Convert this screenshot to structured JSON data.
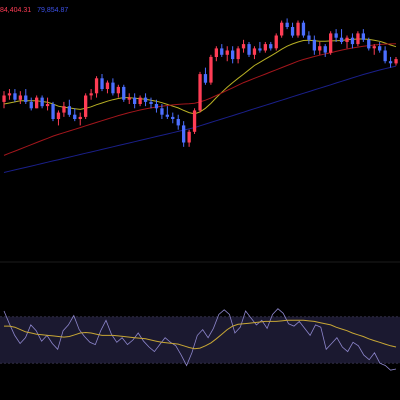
{
  "header": {
    "ma_values": [
      {
        "label": "84,404.31",
        "color": "#ff3d55"
      },
      {
        "label": "79,854.87",
        "color": "#3c50e6"
      }
    ]
  },
  "colors": {
    "background": "#000000",
    "bull": "#ff3d55",
    "bear": "#4c6fff",
    "ma_short": "#b8b024",
    "ma_mid": "#a3161c",
    "ma_long": "#1a1f8a",
    "rsi_line": "#8d86cc",
    "rsi_signal": "#c8a735",
    "rsi_band": "#1b1930",
    "rsi_band_edge": "#4a4468"
  },
  "chart_data": [
    {
      "type": "candlestick",
      "title": "",
      "price_range": [
        0,
        100
      ],
      "candles": [
        {
          "o": 58,
          "h": 63,
          "l": 55,
          "c": 61
        },
        {
          "o": 61,
          "h": 64,
          "l": 59,
          "c": 62
        },
        {
          "o": 62,
          "h": 64,
          "l": 58,
          "c": 59
        },
        {
          "o": 59,
          "h": 63,
          "l": 57,
          "c": 61
        },
        {
          "o": 61,
          "h": 64,
          "l": 57,
          "c": 58
        },
        {
          "o": 58,
          "h": 60,
          "l": 54,
          "c": 55
        },
        {
          "o": 55,
          "h": 61,
          "l": 55,
          "c": 60
        },
        {
          "o": 60,
          "h": 61,
          "l": 55,
          "c": 56
        },
        {
          "o": 56,
          "h": 60,
          "l": 54,
          "c": 57
        },
        {
          "o": 57,
          "h": 58,
          "l": 49,
          "c": 50
        },
        {
          "o": 50,
          "h": 54,
          "l": 47,
          "c": 53
        },
        {
          "o": 53,
          "h": 58,
          "l": 51,
          "c": 56
        },
        {
          "o": 56,
          "h": 59,
          "l": 51,
          "c": 52
        },
        {
          "o": 52,
          "h": 55,
          "l": 49,
          "c": 50
        },
        {
          "o": 50,
          "h": 53,
          "l": 47,
          "c": 51
        },
        {
          "o": 51,
          "h": 62,
          "l": 50,
          "c": 61
        },
        {
          "o": 61,
          "h": 64,
          "l": 59,
          "c": 62
        },
        {
          "o": 62,
          "h": 70,
          "l": 60,
          "c": 69
        },
        {
          "o": 69,
          "h": 71,
          "l": 63,
          "c": 64
        },
        {
          "o": 64,
          "h": 68,
          "l": 62,
          "c": 67
        },
        {
          "o": 67,
          "h": 69,
          "l": 61,
          "c": 62
        },
        {
          "o": 62,
          "h": 66,
          "l": 60,
          "c": 65
        },
        {
          "o": 65,
          "h": 66,
          "l": 58,
          "c": 59
        },
        {
          "o": 59,
          "h": 62,
          "l": 57,
          "c": 60
        },
        {
          "o": 60,
          "h": 62,
          "l": 55,
          "c": 57
        },
        {
          "o": 57,
          "h": 61,
          "l": 56,
          "c": 60
        },
        {
          "o": 60,
          "h": 62,
          "l": 56,
          "c": 58
        },
        {
          "o": 58,
          "h": 60,
          "l": 55,
          "c": 57
        },
        {
          "o": 57,
          "h": 59,
          "l": 53,
          "c": 55
        },
        {
          "o": 55,
          "h": 57,
          "l": 50,
          "c": 52
        },
        {
          "o": 52,
          "h": 56,
          "l": 50,
          "c": 51
        },
        {
          "o": 51,
          "h": 53,
          "l": 48,
          "c": 50
        },
        {
          "o": 50,
          "h": 52,
          "l": 45,
          "c": 47
        },
        {
          "o": 47,
          "h": 49,
          "l": 37,
          "c": 39
        },
        {
          "o": 39,
          "h": 45,
          "l": 37,
          "c": 44
        },
        {
          "o": 44,
          "h": 55,
          "l": 43,
          "c": 54
        },
        {
          "o": 54,
          "h": 72,
          "l": 53,
          "c": 71
        },
        {
          "o": 71,
          "h": 74,
          "l": 66,
          "c": 67
        },
        {
          "o": 67,
          "h": 80,
          "l": 66,
          "c": 79
        },
        {
          "o": 79,
          "h": 84,
          "l": 77,
          "c": 83
        },
        {
          "o": 83,
          "h": 85,
          "l": 79,
          "c": 80
        },
        {
          "o": 80,
          "h": 84,
          "l": 77,
          "c": 82
        },
        {
          "o": 82,
          "h": 84,
          "l": 76,
          "c": 78
        },
        {
          "o": 78,
          "h": 84,
          "l": 76,
          "c": 83
        },
        {
          "o": 83,
          "h": 87,
          "l": 81,
          "c": 85
        },
        {
          "o": 85,
          "h": 86,
          "l": 79,
          "c": 80
        },
        {
          "o": 80,
          "h": 84,
          "l": 78,
          "c": 83
        },
        {
          "o": 83,
          "h": 86,
          "l": 81,
          "c": 82
        },
        {
          "o": 82,
          "h": 86,
          "l": 81,
          "c": 85
        },
        {
          "o": 85,
          "h": 86,
          "l": 82,
          "c": 83
        },
        {
          "o": 83,
          "h": 90,
          "l": 82,
          "c": 89
        },
        {
          "o": 89,
          "h": 96,
          "l": 88,
          "c": 95
        },
        {
          "o": 95,
          "h": 97,
          "l": 92,
          "c": 93
        },
        {
          "o": 93,
          "h": 95,
          "l": 88,
          "c": 89
        },
        {
          "o": 89,
          "h": 96,
          "l": 88,
          "c": 95
        },
        {
          "o": 95,
          "h": 96,
          "l": 88,
          "c": 89
        },
        {
          "o": 89,
          "h": 91,
          "l": 85,
          "c": 87
        },
        {
          "o": 87,
          "h": 89,
          "l": 80,
          "c": 82
        },
        {
          "o": 82,
          "h": 86,
          "l": 80,
          "c": 84
        },
        {
          "o": 84,
          "h": 85,
          "l": 79,
          "c": 81
        },
        {
          "o": 81,
          "h": 91,
          "l": 80,
          "c": 90
        },
        {
          "o": 90,
          "h": 92,
          "l": 86,
          "c": 88
        },
        {
          "o": 88,
          "h": 92,
          "l": 85,
          "c": 86
        },
        {
          "o": 86,
          "h": 89,
          "l": 83,
          "c": 88
        },
        {
          "o": 88,
          "h": 90,
          "l": 83,
          "c": 85
        },
        {
          "o": 85,
          "h": 91,
          "l": 84,
          "c": 90
        },
        {
          "o": 90,
          "h": 92,
          "l": 86,
          "c": 87
        },
        {
          "o": 87,
          "h": 88,
          "l": 82,
          "c": 83
        },
        {
          "o": 83,
          "h": 85,
          "l": 80,
          "c": 84
        },
        {
          "o": 84,
          "h": 86,
          "l": 81,
          "c": 82
        },
        {
          "o": 82,
          "h": 84,
          "l": 76,
          "c": 77
        },
        {
          "o": 77,
          "h": 79,
          "l": 74,
          "c": 76
        },
        {
          "o": 76,
          "h": 79,
          "l": 75,
          "c": 78
        }
      ],
      "moving_averages": [
        {
          "color_key": "ma_short",
          "values": [
            57,
            57.5,
            58,
            58.5,
            58.5,
            58.5,
            58.5,
            58.2,
            57.8,
            57,
            56,
            55.5,
            55.2,
            54.8,
            54.5,
            55,
            55.7,
            56.7,
            57.5,
            58.3,
            59,
            59.6,
            60,
            60,
            59.7,
            59.5,
            59.2,
            58.8,
            58.3,
            57.6,
            56.8,
            56,
            55.2,
            54,
            53,
            52.4,
            53.3,
            55,
            57.3,
            60,
            62.5,
            64.8,
            67,
            69,
            71,
            73,
            75,
            76.5,
            78,
            79.5,
            81,
            82.6,
            84,
            85.1,
            86,
            86.7,
            86.8,
            86.6,
            86.3,
            86.3,
            86.5,
            86.6,
            86.7,
            87,
            87.2,
            87.4,
            87.4,
            87.2,
            86.8,
            86.3,
            85.5,
            84.6,
            83.8
          ]
        },
        {
          "color_key": "ma_mid",
          "values": [
            33,
            34,
            35,
            36,
            37,
            38,
            39,
            40,
            41,
            42,
            42.8,
            43.6,
            44.4,
            45.2,
            46,
            46.8,
            47.6,
            48.4,
            49.2,
            50,
            50.8,
            51.6,
            52.3,
            53,
            53.6,
            54.2,
            54.7,
            55.2,
            55.6,
            56,
            56.3,
            56.6,
            56.8,
            57,
            57.1,
            57.4,
            58,
            58.8,
            59.8,
            61,
            62.2,
            63.4,
            64.6,
            65.8,
            67,
            68,
            69,
            70,
            71,
            72,
            73,
            74,
            75,
            76,
            77,
            77.8,
            78.5,
            79.2,
            79.8,
            80.4,
            81,
            81.6,
            82.2,
            82.7,
            83.2,
            83.6,
            84,
            84.3,
            84.6,
            84.8,
            85,
            85.1,
            85.2
          ]
        },
        {
          "color_key": "ma_long",
          "values": [
            25,
            25.6,
            26.2,
            26.8,
            27.4,
            28,
            28.6,
            29.2,
            29.8,
            30.4,
            31,
            31.6,
            32.2,
            32.8,
            33.4,
            34,
            34.6,
            35.2,
            35.8,
            36.4,
            37,
            37.6,
            38.2,
            38.8,
            39.4,
            40,
            40.6,
            41.2,
            41.8,
            42.4,
            43,
            43.6,
            44.2,
            44.8,
            45.4,
            46,
            46.8,
            47.6,
            48.4,
            49.2,
            50,
            50.8,
            51.6,
            52.4,
            53.2,
            54,
            54.8,
            55.6,
            56.4,
            57.2,
            58,
            58.8,
            59.6,
            60.4,
            61.2,
            62,
            62.8,
            63.6,
            64.4,
            65.2,
            66,
            66.8,
            67.6,
            68.4,
            69.2,
            70,
            70.8,
            71.5,
            72.2,
            72.9,
            73.5,
            74.1,
            74.7
          ]
        }
      ]
    },
    {
      "type": "line",
      "title": "",
      "ylim": [
        0,
        100
      ],
      "band": [
        30,
        70
      ],
      "series": [
        {
          "color_key": "rsi_line",
          "values": [
            75,
            64,
            54,
            47,
            52,
            63,
            58,
            49,
            54,
            47,
            42,
            58,
            63,
            71,
            59,
            53,
            48,
            46,
            58,
            67,
            55,
            48,
            52,
            46,
            50,
            56,
            49,
            44,
            40,
            46,
            52,
            48,
            45,
            37,
            28,
            39,
            54,
            59,
            52,
            60,
            72,
            76,
            72,
            56,
            61,
            75,
            69,
            63,
            67,
            60,
            72,
            77,
            73,
            64,
            62,
            66,
            60,
            54,
            63,
            61,
            42,
            47,
            52,
            44,
            40,
            48,
            45,
            37,
            33,
            39,
            30,
            28,
            24,
            25
          ]
        },
        {
          "color_key": "rsi_signal",
          "values": [
            62,
            62,
            61,
            59,
            57,
            56,
            55,
            54.5,
            54,
            53.5,
            53,
            52.5,
            53,
            54.5,
            56,
            56.5,
            56,
            55,
            54,
            54,
            54,
            53.5,
            53,
            52.5,
            52,
            51.5,
            51,
            50,
            49,
            48,
            47.5,
            47,
            46.5,
            45,
            43.5,
            42.5,
            43,
            45,
            47.5,
            51,
            55,
            59,
            62,
            63.5,
            64,
            64.5,
            65,
            65.5,
            66,
            66,
            66,
            66.5,
            67,
            67,
            67,
            67,
            66.5,
            66,
            65,
            64,
            63,
            61,
            59.5,
            58,
            56,
            54.5,
            53,
            51,
            49.5,
            48,
            46.5,
            45,
            44
          ]
        }
      ]
    }
  ]
}
